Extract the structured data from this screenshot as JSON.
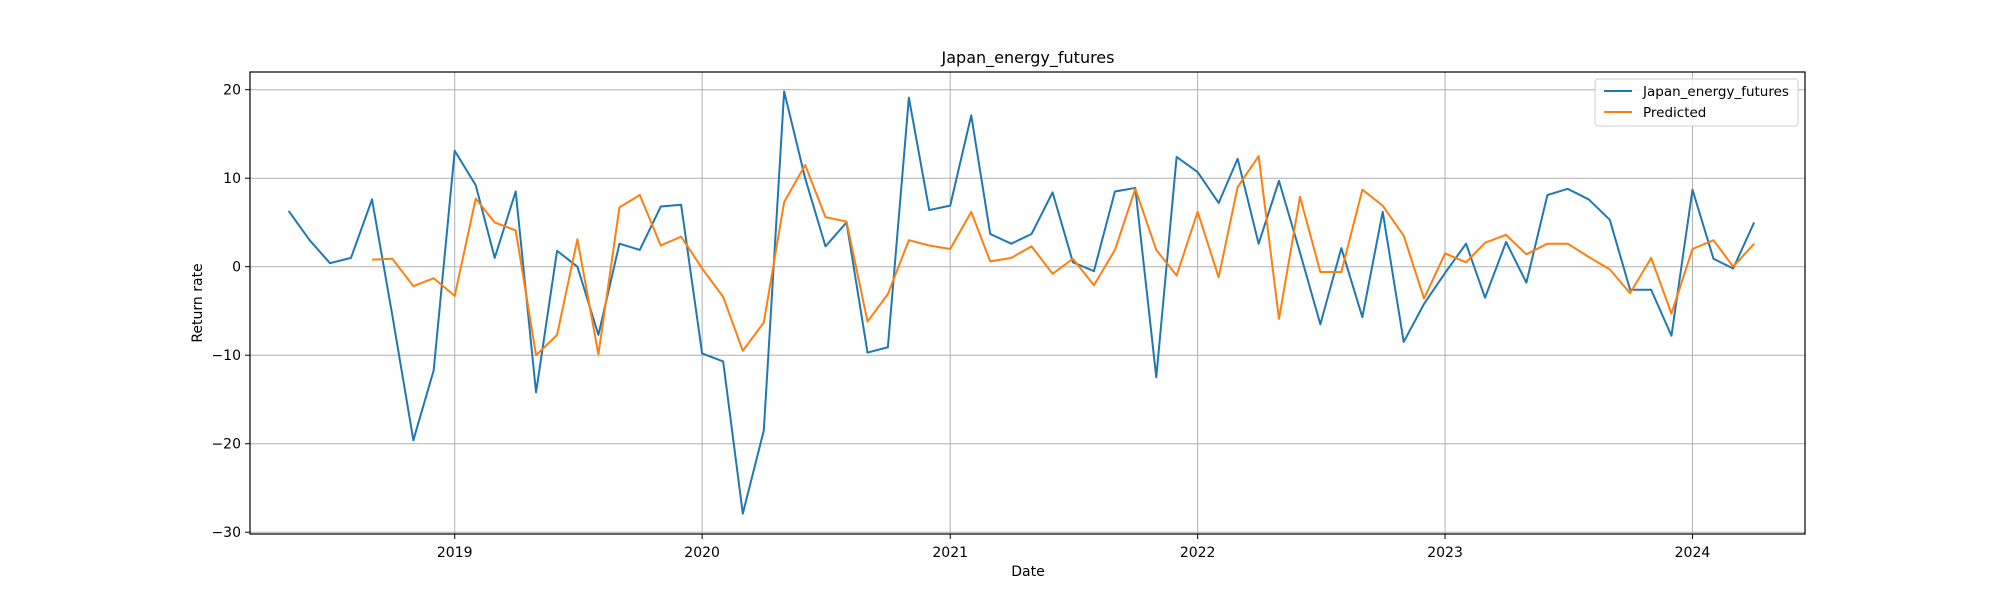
{
  "chart_data": {
    "type": "line",
    "title": "Japan_energy_futures",
    "xlabel": "Date",
    "ylabel": "Return rate",
    "ylim": [
      -30.2,
      22.0
    ],
    "xlim": [
      "2018-03-05",
      "2024-06-15"
    ],
    "grid": true,
    "legend_position": "top-right",
    "y_ticks": [
      20,
      10,
      0,
      -10,
      -20,
      -30
    ],
    "y_tick_labels": [
      "20",
      "10",
      "0",
      "−10",
      "−20",
      "−30"
    ],
    "x_ticks": [
      "2019-01-01",
      "2020-01-01",
      "2021-01-01",
      "2022-01-01",
      "2023-01-01",
      "2024-01-01"
    ],
    "x_tick_labels": [
      "2019",
      "2020",
      "2021",
      "2022",
      "2023",
      "2024"
    ],
    "x": [
      "2018-05-01",
      "2018-06-01",
      "2018-07-01",
      "2018-08-01",
      "2018-09-01",
      "2018-10-01",
      "2018-11-01",
      "2018-12-01",
      "2019-01-01",
      "2019-02-01",
      "2019-03-01",
      "2019-04-01",
      "2019-05-01",
      "2019-06-01",
      "2019-07-01",
      "2019-08-01",
      "2019-09-01",
      "2019-10-01",
      "2019-11-01",
      "2019-12-01",
      "2020-01-01",
      "2020-02-01",
      "2020-03-01",
      "2020-04-01",
      "2020-05-01",
      "2020-06-01",
      "2020-07-01",
      "2020-08-01",
      "2020-09-01",
      "2020-10-01",
      "2020-11-01",
      "2020-12-01",
      "2021-01-01",
      "2021-02-01",
      "2021-03-01",
      "2021-04-01",
      "2021-05-01",
      "2021-06-01",
      "2021-07-01",
      "2021-08-01",
      "2021-09-01",
      "2021-10-01",
      "2021-11-01",
      "2021-12-01",
      "2022-01-01",
      "2022-02-01",
      "2022-03-01",
      "2022-04-01",
      "2022-05-01",
      "2022-06-01",
      "2022-07-01",
      "2022-08-01",
      "2022-09-01",
      "2022-10-01",
      "2022-11-01",
      "2022-12-01",
      "2023-01-01",
      "2023-02-01",
      "2023-03-01",
      "2023-04-01",
      "2023-05-01",
      "2023-06-01",
      "2023-07-01",
      "2023-08-01",
      "2023-09-01",
      "2023-10-01",
      "2023-11-01",
      "2023-12-01",
      "2024-01-01",
      "2024-02-01",
      "2024-03-01",
      "2024-04-01"
    ],
    "series": [
      {
        "name": "Japan_energy_futures",
        "color": "#1f77b4",
        "values": [
          6.3,
          3.0,
          0.4,
          1.0,
          7.6,
          -5.5,
          -19.6,
          -11.7,
          13.1,
          9.2,
          1.0,
          8.5,
          -14.2,
          1.8,
          0.0,
          -7.7,
          2.6,
          1.9,
          6.8,
          7.0,
          -9.8,
          -10.7,
          -27.9,
          -18.5,
          19.8,
          10.0,
          2.3,
          5.0,
          -9.7,
          -9.1,
          19.1,
          6.4,
          6.9,
          17.1,
          3.7,
          2.6,
          3.7,
          8.4,
          0.5,
          -0.5,
          8.5,
          8.9,
          -12.5,
          12.4,
          10.7,
          7.2,
          12.2,
          2.6,
          9.7,
          1.6,
          -6.5,
          2.1,
          -5.7,
          6.2,
          -8.5,
          -4.2,
          -0.7,
          2.6,
          -3.5,
          2.8,
          -1.8,
          8.1,
          8.8,
          7.6,
          5.3,
          -2.6,
          -2.6,
          -7.8,
          8.7,
          0.9,
          -0.2,
          5.0
        ]
      },
      {
        "name": "Predicted",
        "color": "#ff7f0e",
        "values": [
          null,
          null,
          null,
          null,
          0.8,
          0.9,
          -2.2,
          -1.3,
          -3.3,
          7.7,
          5.0,
          4.1,
          -10.0,
          -7.7,
          3.1,
          -9.9,
          6.7,
          8.1,
          2.4,
          3.4,
          -0.2,
          -3.4,
          -9.5,
          -6.3,
          7.3,
          11.5,
          5.6,
          5.1,
          -6.2,
          -3.1,
          3.0,
          2.4,
          2.0,
          6.2,
          0.6,
          1.0,
          2.3,
          -0.8,
          0.9,
          -2.1,
          1.9,
          8.8,
          1.9,
          -1.0,
          6.2,
          -1.2,
          9.0,
          12.5,
          -5.9,
          7.9,
          -0.6,
          -0.6,
          8.7,
          6.9,
          3.5,
          -3.6,
          1.5,
          0.5,
          2.7,
          3.6,
          1.4,
          2.6,
          2.6,
          1.1,
          -0.3,
          -3.0,
          1.0,
          -5.3,
          2.0,
          3.0,
          0.0,
          2.6
        ]
      }
    ]
  }
}
